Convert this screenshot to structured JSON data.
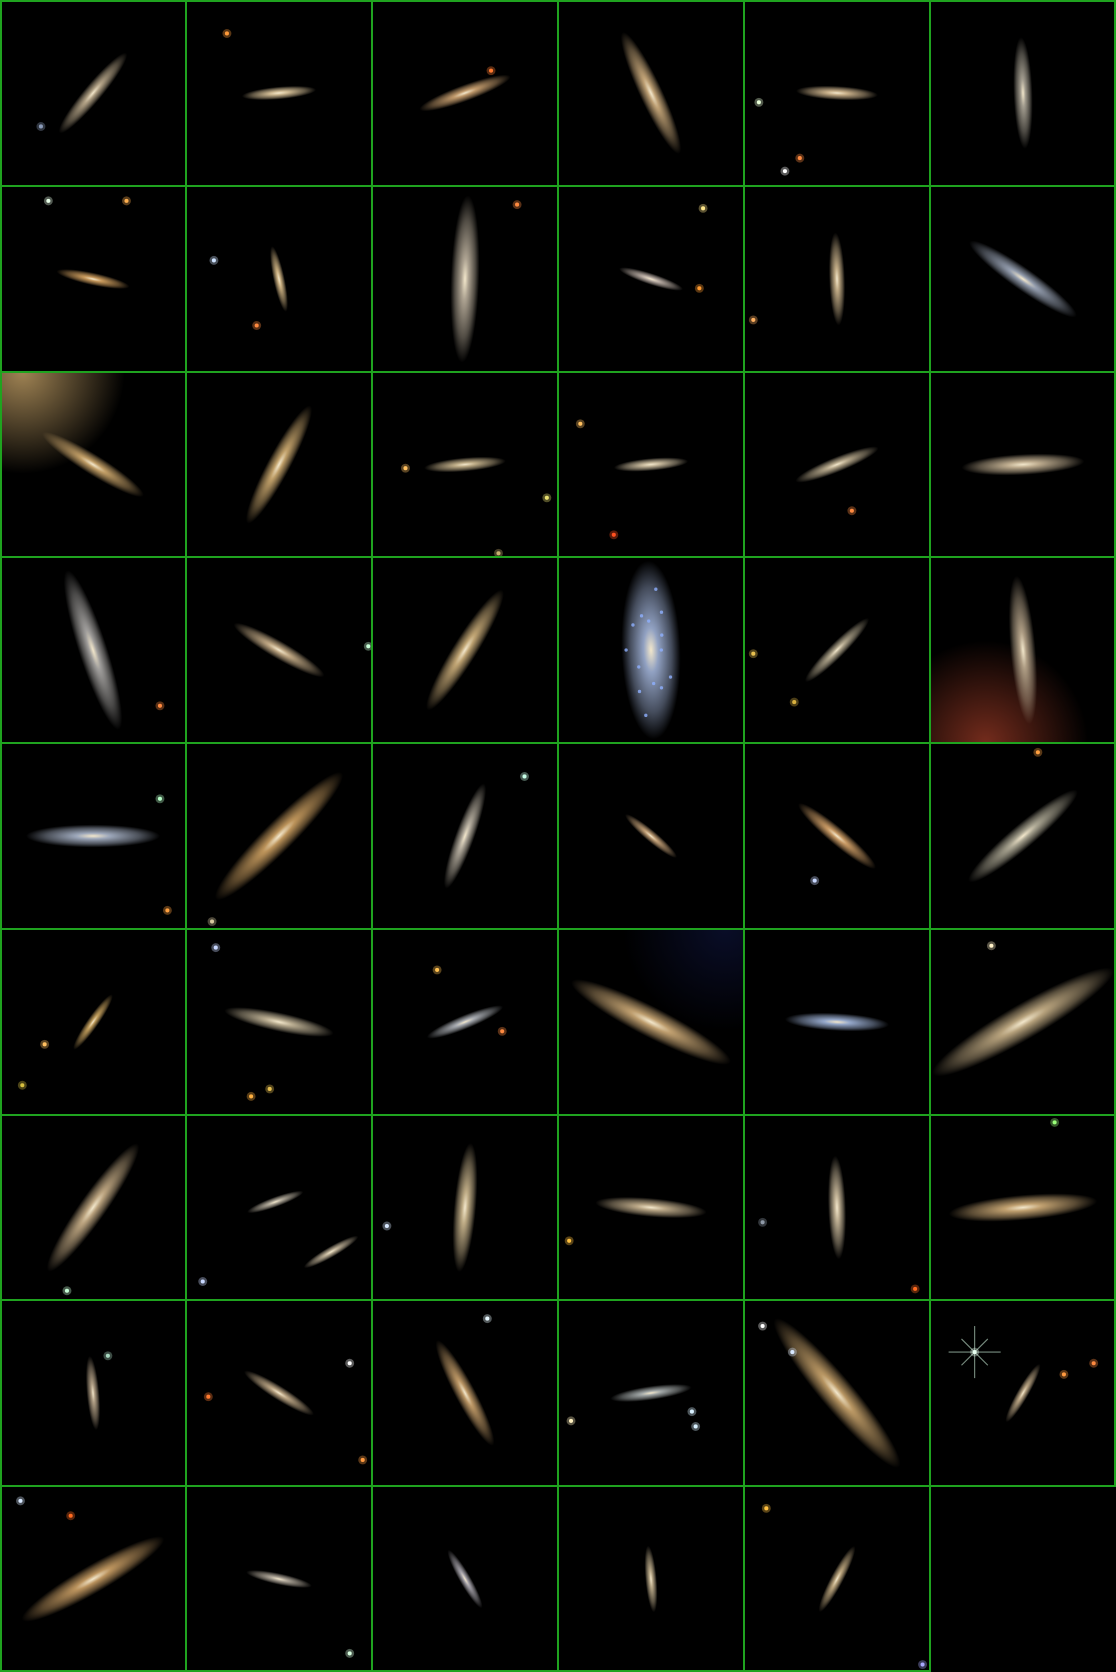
{
  "mosaic": {
    "columns": 6,
    "rows": 9,
    "grid_color": "#1fa31f",
    "background_color": "#000000",
    "tiles": [
      {
        "id": "r1c1",
        "row": 1,
        "col": 1,
        "content": "edge-on-galaxy",
        "angle": -50,
        "color": "#b8a78a",
        "extent": 0.28,
        "stars": [
          [
            0.22,
            0.68,
            "#8a9ab8"
          ]
        ]
      },
      {
        "id": "r1c2",
        "row": 1,
        "col": 2,
        "content": "edge-on-galaxy",
        "angle": -5,
        "color": "#d9c39a",
        "extent": 0.2,
        "stars": [
          [
            0.22,
            0.18,
            "#ff9a3a"
          ]
        ]
      },
      {
        "id": "r1c3",
        "row": 1,
        "col": 3,
        "content": "edge-on-galaxy",
        "angle": -20,
        "color": "#c9a070",
        "extent": 0.26,
        "stars": [
          [
            0.64,
            0.38,
            "#ff7a30"
          ]
        ]
      },
      {
        "id": "r1c4",
        "row": 1,
        "col": 4,
        "content": "edge-on-galaxy",
        "angle": 65,
        "color": "#c8a87a",
        "extent": 0.36,
        "stars": []
      },
      {
        "id": "r1c5",
        "row": 1,
        "col": 5,
        "content": "edge-on-galaxy",
        "angle": 3,
        "color": "#d2b890",
        "extent": 0.22,
        "stars": [
          [
            0.08,
            0.55,
            "#e8ffd8"
          ],
          [
            0.22,
            0.92,
            "#ffffff"
          ],
          [
            0.3,
            0.85,
            "#ff8a40"
          ]
        ]
      },
      {
        "id": "r1c6",
        "row": 1,
        "col": 6,
        "content": "edge-on-galaxy",
        "angle": 88,
        "color": "#a9a395",
        "extent": 0.3,
        "stars": []
      },
      {
        "id": "r2c1",
        "row": 2,
        "col": 1,
        "content": "edge-on-galaxy",
        "angle": 12,
        "color": "#d1a060",
        "extent": 0.2,
        "stars": [
          [
            0.26,
            0.08,
            "#e8ffe8"
          ],
          [
            0.68,
            0.08,
            "#ffb050"
          ]
        ]
      },
      {
        "id": "r2c2",
        "row": 2,
        "col": 2,
        "content": "edge-on-galaxy",
        "angle": 78,
        "color": "#d4b887",
        "extent": 0.18,
        "stars": [
          [
            0.15,
            0.4,
            "#cfe3ff"
          ],
          [
            0.38,
            0.75,
            "#ff8a40"
          ]
        ]
      },
      {
        "id": "r2c3",
        "row": 2,
        "col": 3,
        "content": "edge-on-galaxy",
        "angle": 92,
        "color": "#b5aa98",
        "extent": 0.45,
        "stars": [
          [
            0.78,
            0.1,
            "#ff8a40"
          ]
        ]
      },
      {
        "id": "r2c4",
        "row": 2,
        "col": 4,
        "content": "edge-on-galaxy",
        "angle": 18,
        "color": "#c3b6ad",
        "extent": 0.18,
        "stars": [
          [
            0.76,
            0.55,
            "#ff9a30"
          ],
          [
            0.78,
            0.12,
            "#ffe68a"
          ]
        ]
      },
      {
        "id": "r2c5",
        "row": 2,
        "col": 5,
        "content": "edge-on-galaxy",
        "angle": 88,
        "color": "#c8b18a",
        "extent": 0.25,
        "stars": [
          [
            0.05,
            0.72,
            "#ffb060"
          ]
        ]
      },
      {
        "id": "r2c6",
        "row": 2,
        "col": 6,
        "content": "edge-on-galaxy",
        "angle": 35,
        "color": "#9aa4b6",
        "extent": 0.35,
        "stars": []
      },
      {
        "id": "r3c1",
        "row": 3,
        "col": 1,
        "content": "edge-on-galaxy",
        "angle": 32,
        "color": "#c9a46a",
        "extent": 0.32,
        "stars": [],
        "glow": [
          0.12,
          0.0,
          "#a88a58"
        ]
      },
      {
        "id": "r3c2",
        "row": 3,
        "col": 2,
        "content": "edge-on-galaxy",
        "angle": -62,
        "color": "#c9a76e",
        "extent": 0.36,
        "stars": []
      },
      {
        "id": "r3c3",
        "row": 3,
        "col": 3,
        "content": "edge-on-galaxy",
        "angle": -5,
        "color": "#c8b58e",
        "extent": 0.22,
        "stars": [
          [
            0.18,
            0.52,
            "#ffc060"
          ],
          [
            0.94,
            0.68,
            "#e8e070"
          ],
          [
            0.68,
            0.98,
            "#c8b070"
          ]
        ]
      },
      {
        "id": "r3c4",
        "row": 3,
        "col": 4,
        "content": "edge-on-galaxy",
        "angle": -5,
        "color": "#cfc0a2",
        "extent": 0.2,
        "stars": [
          [
            0.3,
            0.88,
            "#ff5020"
          ],
          [
            0.12,
            0.28,
            "#ffc060"
          ]
        ]
      },
      {
        "id": "r3c5",
        "row": 3,
        "col": 5,
        "content": "edge-on-galaxy",
        "angle": -22,
        "color": "#bfb092",
        "extent": 0.24,
        "stars": [
          [
            0.58,
            0.75,
            "#ff8a40"
          ]
        ]
      },
      {
        "id": "r3c6",
        "row": 3,
        "col": 6,
        "content": "edge-on-galaxy",
        "angle": -3,
        "color": "#c9b697",
        "extent": 0.33,
        "stars": []
      },
      {
        "id": "r4c1",
        "row": 4,
        "col": 1,
        "content": "edge-on-galaxy",
        "angle": 72,
        "color": "#a7a5a3",
        "extent": 0.45,
        "stars": [
          [
            0.86,
            0.8,
            "#ff8a40"
          ]
        ]
      },
      {
        "id": "r4c2",
        "row": 4,
        "col": 2,
        "content": "edge-on-galaxy",
        "angle": 30,
        "color": "#c6ad88",
        "extent": 0.28,
        "stars": [
          [
            0.98,
            0.48,
            "#c8ffd8"
          ]
        ]
      },
      {
        "id": "r4c3",
        "row": 4,
        "col": 3,
        "content": "edge-on-galaxy",
        "angle": -58,
        "color": "#c8ab78",
        "extent": 0.38,
        "stars": []
      },
      {
        "id": "r4c4",
        "row": 4,
        "col": 4,
        "content": "spiral-galaxy",
        "angle": 88,
        "color": "#98a9cc",
        "extent": 0.48,
        "stars": []
      },
      {
        "id": "r4c5",
        "row": 4,
        "col": 5,
        "content": "edge-on-galaxy",
        "angle": -45,
        "color": "#b5aa90",
        "extent": 0.24,
        "stars": [
          [
            0.05,
            0.52,
            "#e8c050"
          ],
          [
            0.27,
            0.78,
            "#d8b040"
          ]
        ]
      },
      {
        "id": "r4c6",
        "row": 4,
        "col": 6,
        "content": "edge-on-galaxy",
        "angle": 85,
        "color": "#b6a48a",
        "extent": 0.4,
        "stars": [],
        "glow": [
          0.3,
          1.0,
          "#7a2e1e"
        ]
      },
      {
        "id": "r5c1",
        "row": 5,
        "col": 1,
        "content": "edge-on-galaxy",
        "angle": 0,
        "color": "#a5b0c4",
        "extent": 0.36,
        "stars": [
          [
            0.86,
            0.3,
            "#b8ffc8"
          ],
          [
            0.9,
            0.9,
            "#ffa040"
          ]
        ]
      },
      {
        "id": "r5c2",
        "row": 5,
        "col": 2,
        "content": "edge-on-galaxy",
        "angle": -45,
        "color": "#c59a5e",
        "extent": 0.48,
        "stars": [
          [
            0.14,
            0.96,
            "#d8c8a0"
          ]
        ]
      },
      {
        "id": "r5c3",
        "row": 5,
        "col": 3,
        "content": "edge-on-galaxy",
        "angle": -70,
        "color": "#bbb3a4",
        "extent": 0.3,
        "stars": [
          [
            0.82,
            0.18,
            "#c8ffe8"
          ]
        ]
      },
      {
        "id": "r5c4",
        "row": 5,
        "col": 4,
        "content": "edge-on-galaxy",
        "angle": 40,
        "color": "#c8a47a",
        "extent": 0.18,
        "stars": []
      },
      {
        "id": "r5c5",
        "row": 5,
        "col": 5,
        "content": "edge-on-galaxy",
        "angle": 40,
        "color": "#d1a068",
        "extent": 0.27,
        "stars": [
          [
            0.38,
            0.74,
            "#c8d8ff"
          ]
        ]
      },
      {
        "id": "r5c6",
        "row": 5,
        "col": 6,
        "content": "edge-on-galaxy",
        "angle": -40,
        "color": "#b1ac98",
        "extent": 0.38,
        "stars": [
          [
            0.58,
            0.05,
            "#ffa040"
          ]
        ]
      },
      {
        "id": "r6c1",
        "row": 6,
        "col": 1,
        "content": "edge-on-galaxy",
        "angle": -55,
        "color": "#c9a460",
        "extent": 0.18,
        "stars": [
          [
            0.24,
            0.62,
            "#ffc060"
          ],
          [
            0.12,
            0.84,
            "#d8c040"
          ]
        ]
      },
      {
        "id": "r6c2",
        "row": 6,
        "col": 2,
        "content": "edge-on-galaxy",
        "angle": 12,
        "color": "#c1b497",
        "extent": 0.3,
        "stars": [
          [
            0.35,
            0.9,
            "#ffb040"
          ],
          [
            0.45,
            0.86,
            "#e8c050"
          ],
          [
            0.16,
            0.1,
            "#c8d8ff"
          ]
        ]
      },
      {
        "id": "r6c3",
        "row": 6,
        "col": 3,
        "content": "edge-on-galaxy",
        "angle": -22,
        "color": "#aeb2b8",
        "extent": 0.22,
        "stars": [
          [
            0.35,
            0.22,
            "#ffc050"
          ],
          [
            0.7,
            0.55,
            "#ff8a40"
          ]
        ]
      },
      {
        "id": "r6c4",
        "row": 6,
        "col": 4,
        "content": "edge-on-galaxy",
        "angle": 27,
        "color": "#c8a674",
        "extent": 0.48,
        "stars": [],
        "glow": [
          0.9,
          0.0,
          "#0a0e2a"
        ]
      },
      {
        "id": "r6c5",
        "row": 6,
        "col": 5,
        "content": "edge-on-galaxy",
        "angle": 3,
        "color": "#9cb0d4",
        "extent": 0.28,
        "stars": []
      },
      {
        "id": "r6c6",
        "row": 6,
        "col": 6,
        "content": "edge-on-galaxy",
        "angle": -30,
        "color": "#bfa982",
        "extent": 0.56,
        "stars": [
          [
            0.33,
            0.09,
            "#fff2c8"
          ]
        ]
      },
      {
        "id": "r7c1",
        "row": 7,
        "col": 1,
        "content": "edge-on-galaxy",
        "angle": -55,
        "color": "#c4ab85",
        "extent": 0.42,
        "stars": [
          [
            0.36,
            0.95,
            "#c8ffd8"
          ]
        ]
      },
      {
        "id": "r7c2",
        "row": 7,
        "col": 2,
        "content": "galaxy-pair",
        "angle": -20,
        "color": "#b8b0a0",
        "extent": 0.16,
        "stars": [
          [
            0.09,
            0.9,
            "#c8d8ff"
          ]
        ]
      },
      {
        "id": "r7c3",
        "row": 7,
        "col": 3,
        "content": "edge-on-galaxy",
        "angle": -85,
        "color": "#c8b48c",
        "extent": 0.35,
        "stars": [
          [
            0.08,
            0.6,
            "#d8e8ff"
          ]
        ]
      },
      {
        "id": "r7c4",
        "row": 7,
        "col": 4,
        "content": "edge-on-galaxy",
        "angle": 5,
        "color": "#c4b08e",
        "extent": 0.3,
        "stars": [
          [
            0.06,
            0.68,
            "#ffc040"
          ]
        ]
      },
      {
        "id": "r7c5",
        "row": 7,
        "col": 5,
        "content": "edge-on-galaxy",
        "angle": 88,
        "color": "#c9b99b",
        "extent": 0.28,
        "stars": [
          [
            0.1,
            0.58,
            "#909aa8"
          ],
          [
            0.92,
            0.94,
            "#ff6a20"
          ]
        ]
      },
      {
        "id": "r7c6",
        "row": 7,
        "col": 6,
        "content": "edge-on-galaxy",
        "angle": -5,
        "color": "#caa875",
        "extent": 0.4,
        "stars": [
          [
            0.67,
            0.04,
            "#9aff7a"
          ]
        ]
      },
      {
        "id": "r8c1",
        "row": 8,
        "col": 1,
        "content": "edge-on-galaxy",
        "angle": 85,
        "color": "#b8a58a",
        "extent": 0.2,
        "stars": [
          [
            0.58,
            0.3,
            "#a8d8c0"
          ]
        ]
      },
      {
        "id": "r8c2",
        "row": 8,
        "col": 2,
        "content": "edge-on-galaxy",
        "angle": 32,
        "color": "#c1aa88",
        "extent": 0.22,
        "stars": [
          [
            0.88,
            0.34,
            "#ffffff"
          ],
          [
            0.95,
            0.86,
            "#ff9a40"
          ],
          [
            0.12,
            0.52,
            "#ff7a30"
          ]
        ]
      },
      {
        "id": "r8c3",
        "row": 8,
        "col": 3,
        "content": "edge-on-galaxy",
        "angle": 62,
        "color": "#c59e6a",
        "extent": 0.32,
        "stars": [
          [
            0.62,
            0.1,
            "#e8f8ff"
          ]
        ]
      },
      {
        "id": "r8c4",
        "row": 8,
        "col": 4,
        "content": "edge-on-galaxy",
        "angle": -8,
        "color": "#aab0b0",
        "extent": 0.22,
        "stars": [
          [
            0.07,
            0.65,
            "#fff0c0"
          ],
          [
            0.72,
            0.6,
            "#d8f0ff"
          ],
          [
            0.74,
            0.68,
            "#d8f0ff"
          ]
        ]
      },
      {
        "id": "r8c5",
        "row": 8,
        "col": 5,
        "content": "edge-on-galaxy",
        "angle": 50,
        "color": "#c29e68",
        "extent": 0.52,
        "stars": [
          [
            0.1,
            0.14,
            "#ffffff"
          ],
          [
            0.26,
            0.28,
            "#d8e8ff"
          ]
        ]
      },
      {
        "id": "r8c6",
        "row": 8,
        "col": 6,
        "content": "edge-on-galaxy",
        "angle": -60,
        "color": "#c0aa88",
        "extent": 0.18,
        "stars": [
          [
            0.24,
            0.28,
            "#e8fff0"
          ],
          [
            0.72,
            0.4,
            "#ff9a40"
          ],
          [
            0.88,
            0.34,
            "#ff8a40"
          ]
        ],
        "spike_star": [
          0.24,
          0.28
        ]
      },
      {
        "id": "r9c1",
        "row": 9,
        "col": 1,
        "content": "edge-on-galaxy",
        "angle": -30,
        "color": "#c49a62",
        "extent": 0.44,
        "stars": [
          [
            0.11,
            0.08,
            "#d8e8ff"
          ],
          [
            0.38,
            0.16,
            "#ff6a20"
          ]
        ]
      },
      {
        "id": "r9c2",
        "row": 9,
        "col": 2,
        "content": "edge-on-galaxy",
        "angle": 12,
        "color": "#b7aea0",
        "extent": 0.18,
        "stars": [
          [
            0.88,
            0.9,
            "#d8ffe0"
          ]
        ]
      },
      {
        "id": "r9c3",
        "row": 9,
        "col": 3,
        "content": "edge-on-galaxy",
        "angle": 60,
        "color": "#adaab2",
        "extent": 0.18,
        "stars": []
      },
      {
        "id": "r9c4",
        "row": 9,
        "col": 4,
        "content": "edge-on-galaxy",
        "angle": 85,
        "color": "#c2b18f",
        "extent": 0.18,
        "stars": []
      },
      {
        "id": "r9c5",
        "row": 9,
        "col": 5,
        "content": "edge-on-galaxy",
        "angle": -62,
        "color": "#c2ab82",
        "extent": 0.2,
        "stars": [
          [
            0.12,
            0.12,
            "#ffc040"
          ],
          [
            0.96,
            0.96,
            "#a8a8ff"
          ]
        ]
      },
      {
        "id": "r9c6",
        "row": 9,
        "col": 6,
        "content": "empty",
        "angle": 0,
        "color": "#000000",
        "extent": 0,
        "stars": []
      }
    ]
  }
}
